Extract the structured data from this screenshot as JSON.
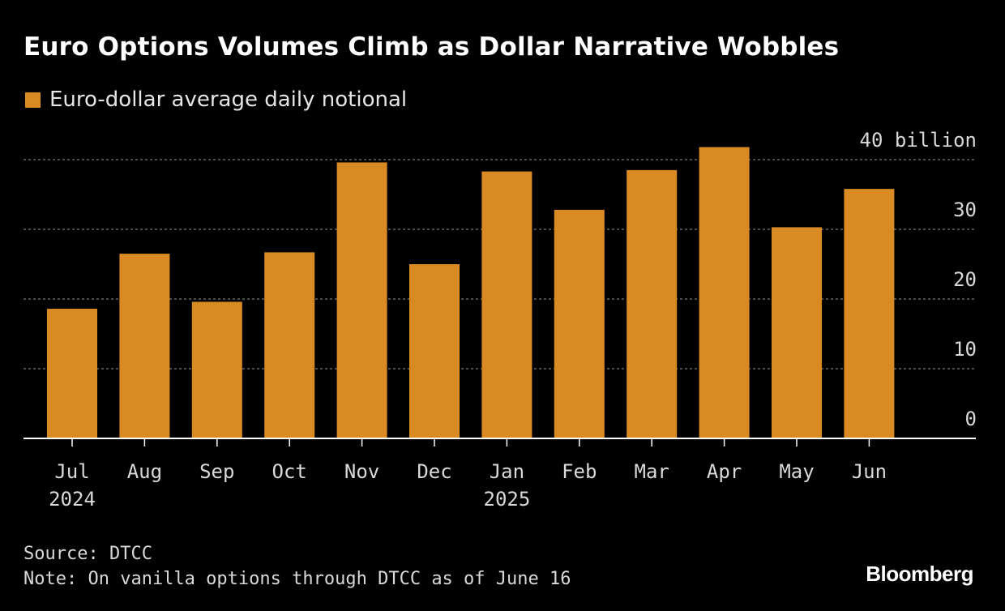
{
  "header": {
    "title": "Euro Options Volumes Climb as Dollar Narrative Wobbles"
  },
  "legend": {
    "label": "Euro-dollar average daily notional",
    "color": "#d98a22"
  },
  "footer": {
    "source": "Source: DTCC",
    "note": "Note: On vanilla options through DTCC as of June 16",
    "brand": "Bloomberg"
  },
  "chart_data": {
    "type": "bar",
    "title": "Euro Options Volumes Climb as Dollar Narrative Wobbles",
    "categories": [
      "Jul",
      "Aug",
      "Sep",
      "Oct",
      "Nov",
      "Dec",
      "Jan",
      "Feb",
      "Mar",
      "Apr",
      "May",
      "Jun"
    ],
    "category_years": [
      "2024",
      "",
      "",
      "",
      "",
      "",
      "2025",
      "",
      "",
      "",
      "",
      ""
    ],
    "series": [
      {
        "name": "Euro-dollar average daily notional",
        "values": [
          18.6,
          26.5,
          19.6,
          26.7,
          39.6,
          25.0,
          38.3,
          32.8,
          38.5,
          41.8,
          30.3,
          35.8
        ]
      }
    ],
    "y_ticks": [
      0,
      10,
      20,
      30,
      40
    ],
    "y_tick_labels": [
      "0",
      "10",
      "20",
      "30",
      "40 billion"
    ],
    "ylim": [
      0,
      40
    ],
    "ylabel": "",
    "xlabel": "",
    "y_axis_side": "right",
    "grid": true,
    "colors": {
      "bar": "#d98a22",
      "grid": "#7a7a7a",
      "axis": "#ffffff",
      "tick_text": "#d9d9d9"
    }
  }
}
